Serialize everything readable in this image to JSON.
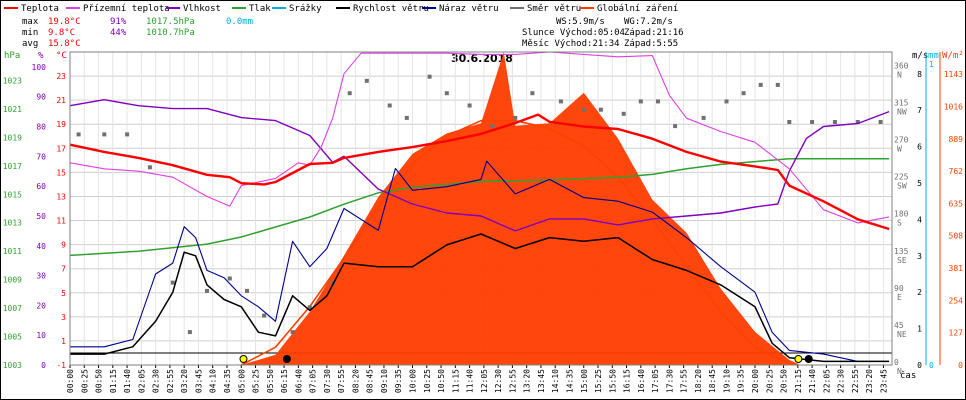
{
  "chart_data": {
    "type": "line",
    "title": "30.6.2018",
    "legend": [
      {
        "name": "Teplota",
        "color": "#ff0000"
      },
      {
        "name": "Přízemní teplota",
        "color": "#e040e0"
      },
      {
        "name": "Vlhkost",
        "color": "#8000c0"
      },
      {
        "name": "Tlak",
        "color": "#30a030"
      },
      {
        "name": "Srážky",
        "color": "#00b0e0"
      },
      {
        "name": "Rychlost větru",
        "color": "#000000"
      },
      {
        "name": "Náraz větru",
        "color": "#000090"
      },
      {
        "name": "Směr větru",
        "color": "#707070"
      },
      {
        "name": "Globální záření",
        "color": "#ff4000"
      }
    ],
    "stats": {
      "max": {
        "label": "max",
        "temp": "19.8°C",
        "hum": "91%",
        "press": "1017.5hPa",
        "rain": "0.0mm"
      },
      "min": {
        "label": "min",
        "temp": "9.8°C",
        "hum": "44%",
        "press": "1010.7hPa"
      },
      "avg": {
        "label": "avg",
        "temp": "15.8°C"
      }
    },
    "info": {
      "ws": "WS:5.9m/s",
      "wg": "WG:7.2m/s",
      "sun": "Slunce Východ:05:04",
      "sun_set": "Západ:21:16",
      "moon": "Měsíc Východ:21:34",
      "moon_set": "Západ:5:55"
    },
    "axes": {
      "hpa_label": "hPa",
      "pct_label": "%",
      "c_label": "°C",
      "ms_label": "m/s",
      "mm_label": "mm",
      "w_label": "W/m²",
      "x_label": "čas",
      "hpa_ticks": [
        "1023",
        "1021",
        "1019",
        "1017",
        "1015",
        "1013",
        "1011",
        "1009",
        "1007",
        "1005",
        "1003"
      ],
      "pct_ticks": [
        "100",
        "90",
        "80",
        "70",
        "60",
        "50",
        "40",
        "30",
        "20",
        "10",
        "0"
      ],
      "c_ticks": [
        "23",
        "21",
        "19",
        "17",
        "15",
        "13",
        "11",
        "9",
        "7",
        "5",
        "3",
        "1",
        "-1"
      ],
      "dir_ticks": [
        "360\nN",
        "315\nNW",
        "270\nW",
        "225\nSW",
        "180\nS",
        "135\nSE",
        "90\nE",
        "45\nNE",
        "0\nN"
      ],
      "ms_ticks": [
        "8",
        "7",
        "6",
        "5",
        "4",
        "3",
        "2",
        "1",
        "0"
      ],
      "mm_ticks": [
        "1",
        "0"
      ],
      "w_ticks": [
        "1143",
        "1016",
        "889",
        "762",
        "635",
        "508",
        "381",
        "254",
        "127",
        "0"
      ],
      "x_ticks": [
        "00:00",
        "00:25",
        "00:50",
        "01:15",
        "01:40",
        "02:05",
        "02:30",
        "02:55",
        "03:20",
        "03:45",
        "04:10",
        "04:35",
        "05:00",
        "05:25",
        "05:50",
        "06:15",
        "06:40",
        "07:05",
        "07:30",
        "07:55",
        "08:20",
        "08:45",
        "09:10",
        "09:35",
        "10:00",
        "10:25",
        "10:50",
        "11:15",
        "11:40",
        "12:05",
        "12:30",
        "12:55",
        "13:20",
        "13:45",
        "14:10",
        "14:35",
        "15:00",
        "15:25",
        "15:50",
        "16:15",
        "16:40",
        "17:05",
        "17:30",
        "17:55",
        "18:20",
        "18:45",
        "19:10",
        "19:35",
        "20:00",
        "20:25",
        "20:50",
        "21:15",
        "21:40",
        "22:05",
        "22:30",
        "22:55",
        "23:20",
        "23:45"
      ]
    },
    "ranges": {
      "temp_c": [
        -1,
        25
      ],
      "humidity_pct": [
        0,
        105
      ],
      "pressure_hpa": [
        1003,
        1025
      ],
      "wind_ms": [
        0,
        8.6
      ],
      "direction_deg": [
        0,
        380
      ],
      "radiation_wm2": [
        0,
        1230
      ]
    },
    "series": [
      {
        "name": "Teplota",
        "unit": "°C",
        "x": [
          "00:00",
          "01:00",
          "02:00",
          "03:00",
          "04:00",
          "04:40",
          "05:00",
          "05:40",
          "06:00",
          "07:00",
          "07:40",
          "08:00",
          "09:00",
          "10:00",
          "11:00",
          "12:00",
          "13:00",
          "13:40",
          "14:00",
          "15:00",
          "16:00",
          "17:00",
          "18:00",
          "19:00",
          "20:00",
          "20:40",
          "21:00",
          "22:00",
          "23:00",
          "23:55"
        ],
        "y": [
          17.3,
          16.7,
          16.2,
          15.6,
          14.8,
          14.6,
          14.1,
          14.0,
          14.2,
          15.7,
          15.8,
          16.2,
          16.7,
          17.1,
          17.6,
          18.2,
          19.1,
          19.8,
          19.2,
          18.8,
          18.6,
          17.8,
          16.7,
          15.9,
          15.5,
          15.2,
          13.9,
          12.6,
          11.1,
          10.3
        ]
      },
      {
        "name": "Přízemní teplota",
        "unit": "°C",
        "x": [
          "00:00",
          "01:00",
          "02:00",
          "03:00",
          "04:00",
          "04:40",
          "05:00",
          "05:40",
          "06:00",
          "06:40",
          "07:00",
          "07:20",
          "07:40",
          "08:00",
          "08:30",
          "09:00",
          "10:00",
          "11:00",
          "12:00",
          "13:00",
          "14:00",
          "15:00",
          "16:00",
          "17:00",
          "17:30",
          "18:00",
          "19:00",
          "20:00",
          "21:00",
          "22:00",
          "23:00",
          "23:55"
        ],
        "y": [
          15.8,
          15.3,
          15.1,
          14.6,
          13.0,
          12.2,
          13.9,
          14.3,
          14.5,
          15.8,
          15.6,
          17.1,
          19.5,
          23.2,
          24.9,
          24.9,
          24.9,
          24.9,
          24.8,
          24.8,
          25.0,
          24.8,
          24.6,
          24.7,
          21.4,
          19.5,
          18.4,
          17.5,
          15.3,
          11.9,
          10.8,
          11.3
        ]
      },
      {
        "name": "Vlhkost",
        "unit": "%",
        "x": [
          "00:00",
          "01:00",
          "02:00",
          "03:00",
          "04:00",
          "05:00",
          "06:00",
          "07:00",
          "07:40",
          "08:00",
          "09:00",
          "10:00",
          "11:00",
          "12:00",
          "13:00",
          "14:00",
          "15:00",
          "16:00",
          "17:00",
          "18:00",
          "19:00",
          "20:00",
          "20:40",
          "21:00",
          "21:30",
          "22:00",
          "23:00",
          "23:55"
        ],
        "y": [
          87,
          89,
          87,
          86,
          86,
          83,
          82,
          77,
          68,
          70,
          59,
          54,
          51,
          50,
          45,
          49,
          49,
          47,
          49,
          50,
          51,
          53,
          54,
          65,
          76,
          80,
          81,
          85
        ]
      },
      {
        "name": "Tlak",
        "unit": "hPa",
        "x": [
          "00:00",
          "02:00",
          "04:00",
          "05:00",
          "06:00",
          "07:00",
          "08:00",
          "09:00",
          "10:00",
          "12:00",
          "14:00",
          "16:00",
          "17:00",
          "18:00",
          "19:00",
          "20:00",
          "21:00",
          "22:00",
          "23:00",
          "23:55"
        ],
        "y": [
          1010.7,
          1011.0,
          1011.5,
          1012.0,
          1012.7,
          1013.4,
          1014.3,
          1015.1,
          1015.5,
          1015.9,
          1016.0,
          1016.2,
          1016.4,
          1016.8,
          1017.1,
          1017.3,
          1017.5,
          1017.5,
          1017.5,
          1017.5
        ]
      },
      {
        "name": "Rychlost větru",
        "unit": "m/s",
        "x": [
          "00:00",
          "01:00",
          "01:50",
          "02:30",
          "03:00",
          "03:20",
          "03:40",
          "04:00",
          "04:30",
          "05:00",
          "05:30",
          "06:00",
          "06:30",
          "07:00",
          "07:30",
          "08:00",
          "09:00",
          "10:00",
          "11:00",
          "12:00",
          "13:00",
          "14:00",
          "15:00",
          "16:00",
          "17:00",
          "18:00",
          "19:00",
          "20:00",
          "20:30",
          "21:00",
          "22:00",
          "23:00",
          "23:55"
        ],
        "y": [
          0.3,
          0.3,
          0.5,
          1.2,
          2.0,
          3.1,
          3.0,
          2.2,
          1.8,
          1.6,
          0.9,
          0.8,
          1.9,
          1.5,
          1.9,
          2.8,
          2.7,
          2.7,
          3.3,
          3.6,
          3.2,
          3.5,
          3.4,
          3.5,
          2.9,
          2.6,
          2.2,
          1.6,
          0.6,
          0.2,
          0.1,
          0.1,
          0.1
        ]
      },
      {
        "name": "Náraz větru",
        "unit": "m/s",
        "x": [
          "00:00",
          "01:00",
          "01:50",
          "02:30",
          "03:00",
          "03:20",
          "03:40",
          "04:00",
          "04:30",
          "05:00",
          "05:30",
          "06:00",
          "06:30",
          "07:00",
          "07:30",
          "08:00",
          "09:00",
          "09:30",
          "10:00",
          "11:00",
          "12:00",
          "12:10",
          "13:00",
          "14:00",
          "15:00",
          "16:00",
          "17:00",
          "18:00",
          "19:00",
          "20:00",
          "20:30",
          "21:00",
          "22:00",
          "23:00",
          "23:55"
        ],
        "y": [
          0.5,
          0.5,
          0.7,
          2.5,
          2.8,
          3.8,
          3.5,
          2.6,
          2.4,
          1.9,
          1.6,
          1.2,
          3.4,
          2.7,
          3.2,
          4.3,
          3.7,
          5.4,
          4.8,
          4.9,
          5.1,
          5.6,
          4.7,
          5.1,
          4.6,
          4.5,
          4.2,
          3.5,
          2.7,
          2.0,
          0.9,
          0.4,
          0.3,
          0.1,
          0.1
        ]
      },
      {
        "name": "Globální záření",
        "unit": "W/m²",
        "x": [
          "05:00",
          "06:00",
          "07:00",
          "08:00",
          "09:00",
          "10:00",
          "11:00",
          "12:00",
          "12:40",
          "13:00",
          "14:00",
          "15:00",
          "16:00",
          "17:00",
          "18:00",
          "19:00",
          "20:00",
          "21:00",
          "21:20"
        ],
        "y": [
          0,
          40,
          210,
          430,
          660,
          830,
          910,
          950,
          1230,
          940,
          950,
          1070,
          890,
          650,
          520,
          300,
          130,
          20,
          0
        ]
      },
      {
        "name": "Globální záření (max teor.)",
        "unit": "W/m²",
        "x": [
          "05:00",
          "06:00",
          "07:00",
          "08:00",
          "09:00",
          "10:00",
          "11:00",
          "12:00",
          "13:00",
          "14:00",
          "15:00",
          "16:00",
          "17:00",
          "18:00",
          "19:00",
          "20:00",
          "21:00",
          "21:15"
        ],
        "y": [
          0,
          70,
          230,
          420,
          620,
          790,
          900,
          960,
          960,
          930,
          860,
          740,
          570,
          390,
          210,
          70,
          5,
          0
        ]
      },
      {
        "name": "Směr větru",
        "unit": "°",
        "x": [
          "00:15",
          "01:00",
          "01:40",
          "02:20",
          "03:00",
          "03:30",
          "04:00",
          "04:40",
          "05:10",
          "05:40",
          "06:30",
          "07:00",
          "07:40",
          "08:10",
          "08:40",
          "09:20",
          "09:50",
          "10:30",
          "11:00",
          "11:40",
          "12:20",
          "13:00",
          "13:30",
          "14:20",
          "15:00",
          "15:30",
          "16:10",
          "16:40",
          "17:10",
          "17:40",
          "18:30",
          "19:10",
          "19:40",
          "20:10",
          "20:40",
          "21:00",
          "21:40",
          "22:20",
          "23:00",
          "23:40"
        ],
        "y": [
          280,
          280,
          280,
          240,
          100,
          40,
          90,
          105,
          90,
          60,
          40,
          70,
          100,
          330,
          345,
          315,
          300,
          350,
          330,
          315,
          290,
          300,
          330,
          320,
          310,
          310,
          305,
          320,
          320,
          290,
          300,
          320,
          330,
          340,
          340,
          295,
          295,
          295,
          295,
          295
        ]
      }
    ]
  }
}
